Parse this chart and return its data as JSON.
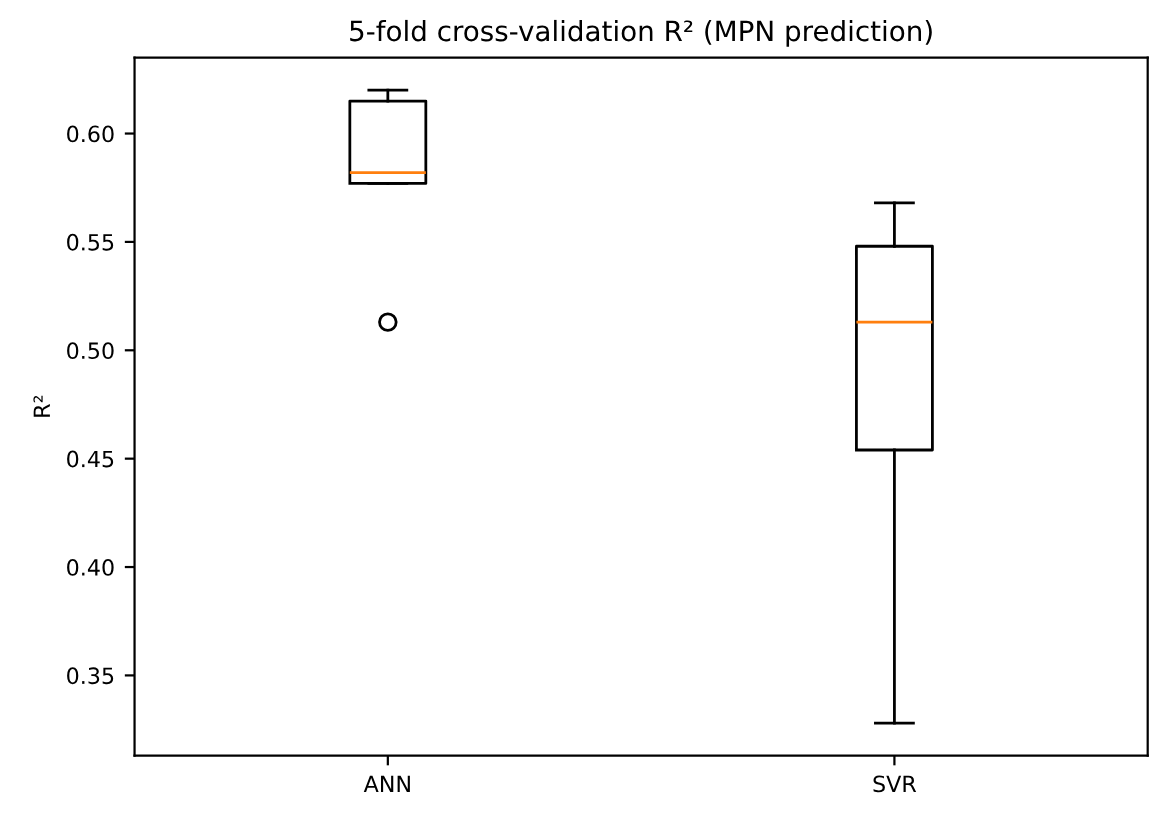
{
  "chart_data": {
    "type": "box",
    "title": "5-fold cross-validation R² (MPN prediction)",
    "ylabel": "R²",
    "categories": [
      "ANN",
      "SVR"
    ],
    "boxes": [
      {
        "low": 0.577,
        "q1": 0.577,
        "median": 0.582,
        "q3": 0.615,
        "high": 0.62,
        "outliers": [
          0.513
        ]
      },
      {
        "low": 0.328,
        "q1": 0.454,
        "median": 0.513,
        "q3": 0.548,
        "high": 0.568
      }
    ],
    "ylim": [
      0.313,
      0.635
    ],
    "yticks": [
      0.35,
      {
        "value": 0.4,
        "label": "0.40"
      },
      0.45,
      {
        "value": 0.5,
        "label": "0.50"
      },
      0.55,
      {
        "value": 0.6,
        "label": "0.60"
      }
    ],
    "grid": false
  }
}
